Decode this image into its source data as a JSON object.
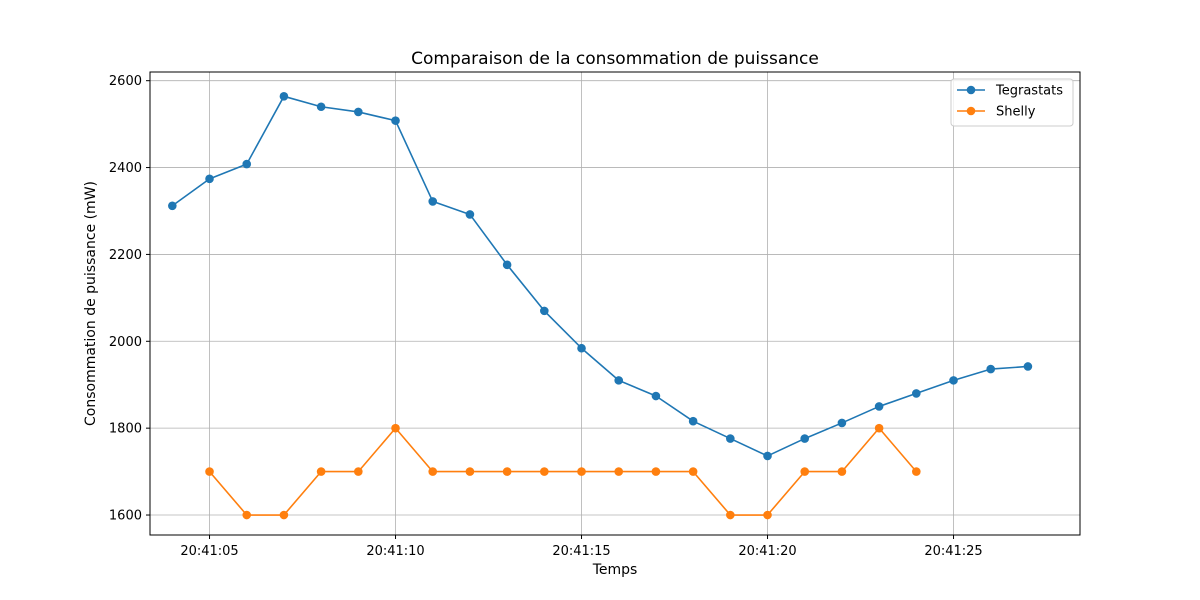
{
  "chart_data": {
    "type": "line",
    "title": "Comparaison de la consommation de puissance",
    "xlabel": "Temps",
    "ylabel": "Consommation de puissance (mW)",
    "x_ticks": [
      "20:41:05",
      "20:41:10",
      "20:41:15",
      "20:41:20",
      "20:41:25"
    ],
    "y_ticks": [
      "1600",
      "1800",
      "2000",
      "2200",
      "2400",
      "2600"
    ],
    "xlim": [
      "20:41:03.4",
      "20:41:28.4"
    ],
    "ylim": [
      1554,
      2620
    ],
    "grid": true,
    "legend_position": "top-right",
    "series": [
      {
        "name": "Tegrastats",
        "color": "#1f77b4",
        "marker": "circle",
        "points": [
          {
            "x": "20:41:04",
            "y": 2312
          },
          {
            "x": "20:41:05",
            "y": 2374
          },
          {
            "x": "20:41:06",
            "y": 2408
          },
          {
            "x": "20:41:07",
            "y": 2564
          },
          {
            "x": "20:41:08",
            "y": 2540
          },
          {
            "x": "20:41:09",
            "y": 2528
          },
          {
            "x": "20:41:10",
            "y": 2508
          },
          {
            "x": "20:41:11",
            "y": 2322
          },
          {
            "x": "20:41:12",
            "y": 2292
          },
          {
            "x": "20:41:13",
            "y": 2176
          },
          {
            "x": "20:41:14",
            "y": 2070
          },
          {
            "x": "20:41:15",
            "y": 1984
          },
          {
            "x": "20:41:16",
            "y": 1910
          },
          {
            "x": "20:41:17",
            "y": 1874
          },
          {
            "x": "20:41:18",
            "y": 1816
          },
          {
            "x": "20:41:19",
            "y": 1776
          },
          {
            "x": "20:41:20",
            "y": 1736
          },
          {
            "x": "20:41:21",
            "y": 1776
          },
          {
            "x": "20:41:22",
            "y": 1812
          },
          {
            "x": "20:41:23",
            "y": 1850
          },
          {
            "x": "20:41:24",
            "y": 1880
          },
          {
            "x": "20:41:25",
            "y": 1910
          },
          {
            "x": "20:41:26",
            "y": 1936
          },
          {
            "x": "20:41:27",
            "y": 1942
          }
        ]
      },
      {
        "name": "Shelly",
        "color": "#ff7f0e",
        "marker": "circle",
        "points": [
          {
            "x": "20:41:05",
            "y": 1700
          },
          {
            "x": "20:41:06",
            "y": 1600
          },
          {
            "x": "20:41:07",
            "y": 1600
          },
          {
            "x": "20:41:08",
            "y": 1700
          },
          {
            "x": "20:41:09",
            "y": 1700
          },
          {
            "x": "20:41:10",
            "y": 1800
          },
          {
            "x": "20:41:11",
            "y": 1700
          },
          {
            "x": "20:41:12",
            "y": 1700
          },
          {
            "x": "20:41:13",
            "y": 1700
          },
          {
            "x": "20:41:14",
            "y": 1700
          },
          {
            "x": "20:41:15",
            "y": 1700
          },
          {
            "x": "20:41:16",
            "y": 1700
          },
          {
            "x": "20:41:17",
            "y": 1700
          },
          {
            "x": "20:41:18",
            "y": 1700
          },
          {
            "x": "20:41:19",
            "y": 1600
          },
          {
            "x": "20:41:20",
            "y": 1600
          },
          {
            "x": "20:41:21",
            "y": 1700
          },
          {
            "x": "20:41:22",
            "y": 1700
          },
          {
            "x": "20:41:23",
            "y": 1800
          },
          {
            "x": "20:41:24",
            "y": 1700
          }
        ]
      }
    ]
  }
}
